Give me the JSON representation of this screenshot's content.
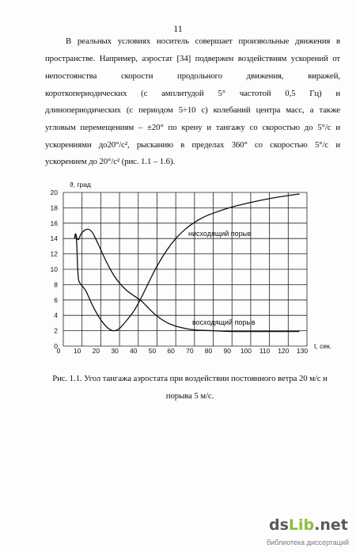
{
  "page_number": "11",
  "body": {
    "lines": [
      "В реальных условиях носитель совершает произвольные движения в",
      "пространстве. Например, аэростат [34] подвержен воздействиям ускорений от",
      "непостоянства скорости продольного движения, виражей,",
      "короткопериодических (с амплитудой 5° частотой 0,5 Гц) и",
      "длинопериодических (с периодом 5÷10 с) колебаний центра масс, а также",
      "угловым перемещениям – ±20° по крену и тангажу со скоростью до 5°/с и",
      "ускорениями до20°/с², рысканию в пределах 360° со скоростью 5°/с и",
      "ускорением до 20°/с² (рис. 1.1 – 1.6)."
    ]
  },
  "figure": {
    "caption_lines": [
      "Рис. 1.1. Угол тангажа аэростата при воздействии постоянного ветра 20 м/с и",
      "порыва 5 м/с."
    ]
  },
  "chart_data": {
    "type": "line",
    "xlabel": "t, сек.",
    "ylabel": "ϑ, град",
    "xlim": [
      0,
      130
    ],
    "ylim": [
      0,
      20
    ],
    "x_ticks": [
      0,
      10,
      20,
      30,
      40,
      50,
      60,
      70,
      80,
      90,
      100,
      110,
      120,
      130
    ],
    "y_ticks": [
      0,
      2,
      4,
      6,
      8,
      10,
      12,
      14,
      16,
      18,
      20
    ],
    "grid": true,
    "series": [
      {
        "name": "нисходящий порыв",
        "points": [
          [
            6,
            14.0
          ],
          [
            6.6,
            14.6
          ],
          [
            7.2,
            13.2
          ],
          [
            7.6,
            10.5
          ],
          [
            8.2,
            8.6
          ],
          [
            9.5,
            8.0
          ],
          [
            12,
            7.2
          ],
          [
            15,
            5.6
          ],
          [
            18,
            4.2
          ],
          [
            21,
            3.1
          ],
          [
            24,
            2.3
          ],
          [
            27,
            2.0
          ],
          [
            30,
            2.3
          ],
          [
            34,
            3.4
          ],
          [
            38,
            4.7
          ],
          [
            42,
            6.5
          ],
          [
            46,
            8.5
          ],
          [
            50,
            10.4
          ],
          [
            55,
            12.4
          ],
          [
            60,
            14.0
          ],
          [
            65,
            15.2
          ],
          [
            70,
            16.1
          ],
          [
            75,
            16.8
          ],
          [
            80,
            17.3
          ],
          [
            90,
            18.1
          ],
          [
            100,
            18.7
          ],
          [
            110,
            19.2
          ],
          [
            120,
            19.6
          ],
          [
            126,
            19.8
          ]
        ]
      },
      {
        "name": "восходящий порыв",
        "points": [
          [
            6,
            14.0
          ],
          [
            6.6,
            14.6
          ],
          [
            7.3,
            14.0
          ],
          [
            8.2,
            13.9
          ],
          [
            9.5,
            14.6
          ],
          [
            11.5,
            15.1
          ],
          [
            13.5,
            15.2
          ],
          [
            15.5,
            14.8
          ],
          [
            18,
            13.6
          ],
          [
            21,
            12.0
          ],
          [
            24,
            10.5
          ],
          [
            27,
            9.2
          ],
          [
            30,
            8.2
          ],
          [
            34,
            7.2
          ],
          [
            38,
            6.5
          ],
          [
            42,
            5.8
          ],
          [
            46,
            4.8
          ],
          [
            50,
            3.9
          ],
          [
            55,
            3.1
          ],
          [
            60,
            2.6
          ],
          [
            65,
            2.3
          ],
          [
            70,
            2.1
          ],
          [
            80,
            2.0
          ],
          [
            90,
            1.9
          ],
          [
            110,
            1.9
          ],
          [
            126,
            1.9
          ]
        ]
      }
    ]
  },
  "watermark": {
    "ds": "ds",
    "lib": "Lib",
    "net": ".net",
    "tagline": "библиотека диссертаций"
  },
  "colors": {
    "text": "#111111",
    "logo_gray": "#5a5a5a",
    "logo_green": "#8cbf3f",
    "tagline": "#7a7a7a"
  }
}
